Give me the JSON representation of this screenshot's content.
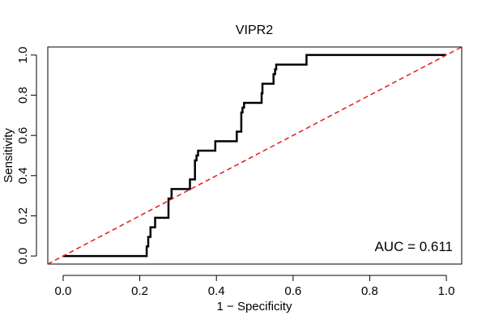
{
  "chart_data": {
    "type": "line",
    "title": "VIPR2",
    "xlabel": "1 − Specificity",
    "ylabel": "Sensitivity",
    "xlim": [
      -0.04,
      1.04
    ],
    "ylim": [
      -0.04,
      1.04
    ],
    "x_ticks": [
      0.0,
      0.2,
      0.4,
      0.6,
      0.8,
      1.0
    ],
    "x_tick_labels": [
      "0.0",
      "0.2",
      "0.4",
      "0.6",
      "0.8",
      "1.0"
    ],
    "y_ticks": [
      0.0,
      0.2,
      0.4,
      0.6,
      0.8,
      1.0
    ],
    "y_tick_labels": [
      "0.0",
      "0.2",
      "0.4",
      "0.6",
      "0.8",
      "1.0"
    ],
    "grid": false,
    "annotation": "AUC = 0.611",
    "series": [
      {
        "color": "#000000",
        "style": "solid",
        "x": [
          0.0,
          0.218,
          0.218,
          0.222,
          0.222,
          0.228,
          0.228,
          0.24,
          0.24,
          0.275,
          0.275,
          0.283,
          0.283,
          0.331,
          0.331,
          0.344,
          0.344,
          0.348,
          0.348,
          0.352,
          0.352,
          0.397,
          0.397,
          0.453,
          0.453,
          0.465,
          0.465,
          0.468,
          0.468,
          0.472,
          0.472,
          0.518,
          0.518,
          0.52,
          0.52,
          0.549,
          0.549,
          0.553,
          0.553,
          0.556,
          0.556,
          0.635,
          0.635,
          1.0
        ],
        "y": [
          0.0,
          0.0,
          0.048,
          0.048,
          0.095,
          0.095,
          0.143,
          0.143,
          0.19,
          0.19,
          0.286,
          0.286,
          0.333,
          0.333,
          0.381,
          0.381,
          0.476,
          0.476,
          0.5,
          0.5,
          0.524,
          0.524,
          0.571,
          0.571,
          0.619,
          0.619,
          0.714,
          0.714,
          0.738,
          0.738,
          0.762,
          0.762,
          0.81,
          0.81,
          0.857,
          0.857,
          0.905,
          0.905,
          0.929,
          0.929,
          0.952,
          0.952,
          1.0,
          1.0
        ]
      },
      {
        "color": "#e41a1c",
        "style": "dashed",
        "x": [
          -0.04,
          1.04
        ],
        "y": [
          -0.04,
          1.04
        ]
      }
    ]
  }
}
